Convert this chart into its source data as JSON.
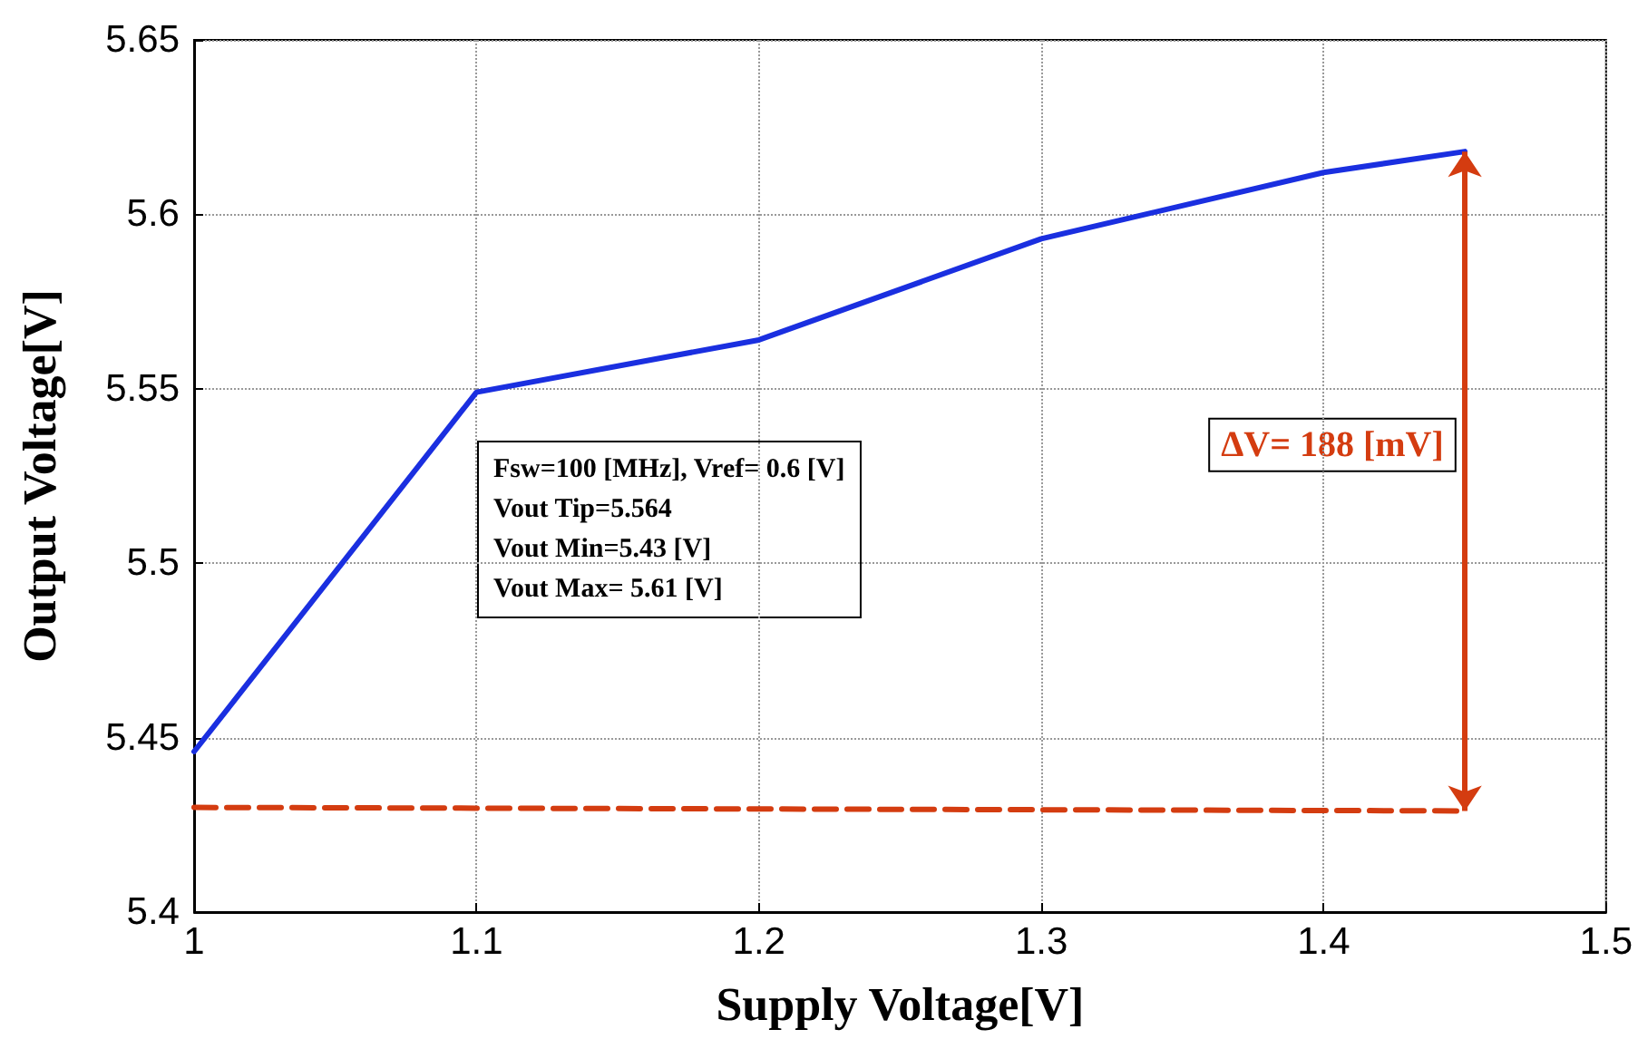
{
  "chart_data": {
    "type": "line",
    "xlabel": "Supply Voltage[V]",
    "ylabel": "Output Voltage[V]",
    "x": [
      1,
      1.1,
      1.2,
      1.3,
      1.4,
      1.45
    ],
    "series": [
      {
        "color": "#1a2fe0",
        "values": [
          5.446,
          5.549,
          5.564,
          5.593,
          5.612,
          5.618
        ],
        "line_style": "solid"
      },
      {
        "color": "#d43c10",
        "x": [
          1,
          1.45
        ],
        "values": [
          5.43,
          5.429
        ],
        "line_style": "dashed"
      }
    ],
    "xlim": [
      1,
      1.5
    ],
    "xticks": [
      1,
      1.1,
      1.2,
      1.3,
      1.4,
      1.5
    ],
    "ylim": [
      5.4,
      5.65
    ],
    "yticks": [
      5.4,
      5.45,
      5.5,
      5.55,
      5.6,
      5.65
    ],
    "grid": true,
    "marker": "none",
    "annotations": [
      "Fsw=100 [MHz], Vref= 0.6 [V]\nVout Tip=5.564\nVout Min=5.43 [V]\nVout Max= 5.61 [V]",
      "ΔV= 188 [mV]"
    ]
  }
}
